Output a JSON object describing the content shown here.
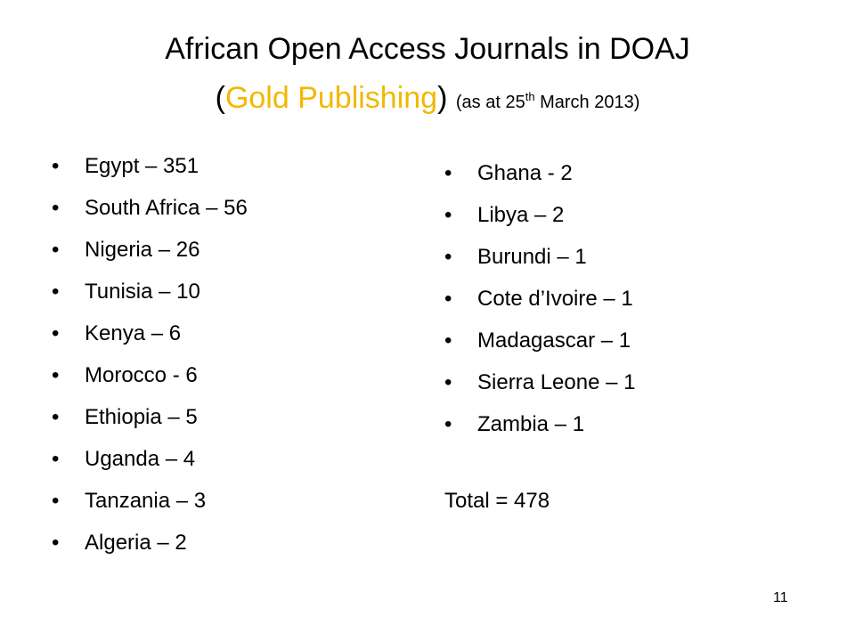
{
  "title": {
    "line1": "African Open Access Journals in DOAJ",
    "open_paren": "(",
    "gold_text": "Gold Publishing",
    "close_paren": ")",
    "as_at_prefix": "(as at  25",
    "as_at_sup": "th",
    "as_at_suffix": " March 2013)",
    "accent_color": "#f2b800"
  },
  "bullet_char": "•",
  "left_list": [
    {
      "label": "Egypt – 351"
    },
    {
      "label": "South Africa – 56"
    },
    {
      "label": "Nigeria – 26"
    },
    {
      "label": "Tunisia – 10"
    },
    {
      "label": "Kenya – 6"
    },
    {
      "label": "Morocco - 6"
    },
    {
      "label": "Ethiopia – 5"
    },
    {
      "label": "Uganda – 4"
    },
    {
      "label": "Tanzania – 3"
    },
    {
      "label": "Algeria – 2"
    }
  ],
  "right_list": [
    {
      "label": "Ghana - 2"
    },
    {
      "label": "Libya – 2"
    },
    {
      "label": "Burundi – 1"
    },
    {
      "label": "Cote d’Ivoire – 1"
    },
    {
      "label": "Madagascar – 1"
    },
    {
      "label": "Sierra Leone – 1"
    },
    {
      "label": "Zambia – 1"
    }
  ],
  "total": "Total = 478",
  "page_number": "11"
}
